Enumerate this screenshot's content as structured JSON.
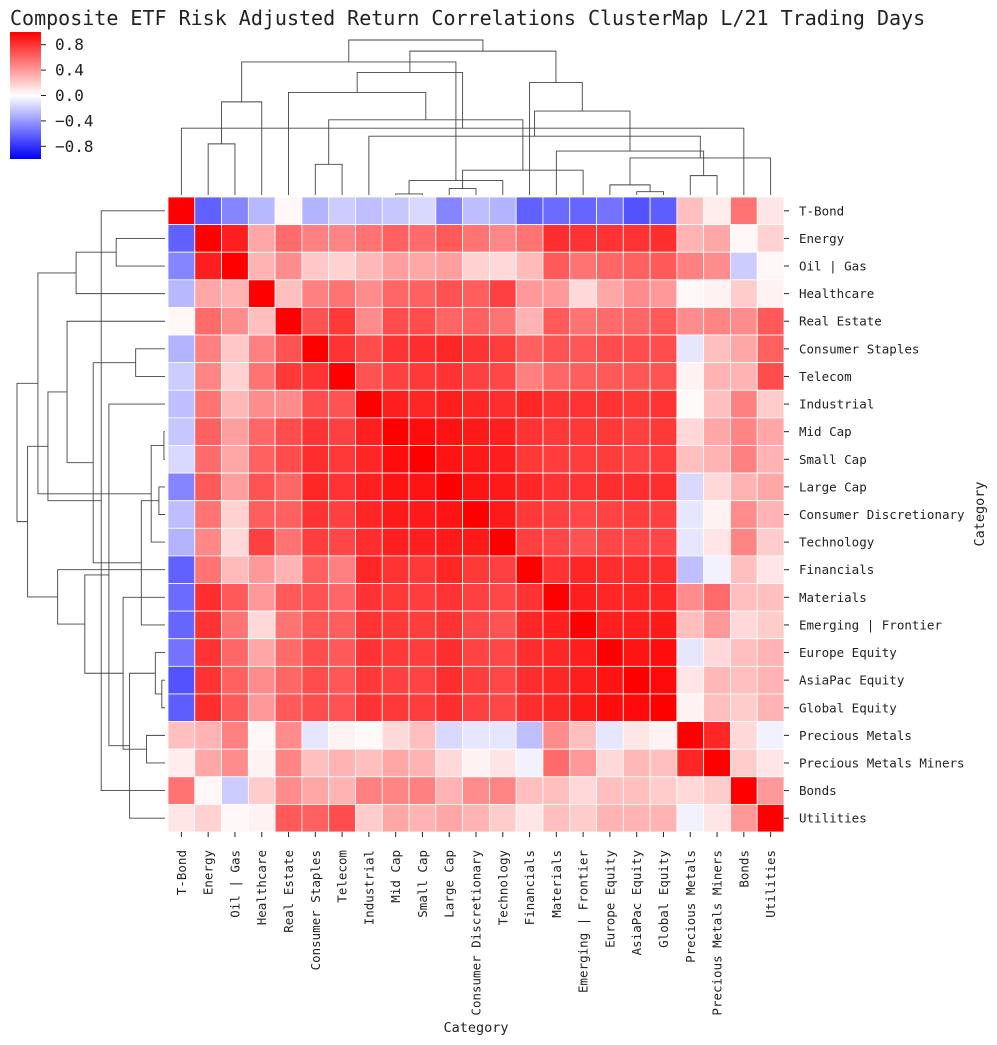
{
  "chart_data": {
    "type": "heatmap",
    "title": "Composite ETF Risk Adjusted Return Correlations ClusterMap L/21 Trading Days",
    "xlabel": "Category",
    "ylabel": "Category",
    "colormap": "bwr",
    "vmin": -1.0,
    "vmax": 1.0,
    "colorbar_ticks": [
      0.8,
      0.4,
      0.0,
      -0.4,
      -0.8
    ],
    "colorbar_tick_labels": [
      "0.8",
      "0.4",
      "0.0",
      "−0.4",
      "−0.8"
    ],
    "colors": {
      "low": "#0000ff",
      "mid": "#ffffff",
      "high": "#ff0000"
    },
    "categories": [
      "T-Bond",
      "Energy",
      "Oil | Gas",
      "Healthcare",
      "Real Estate",
      "Consumer Staples",
      "Telecom",
      "Industrial",
      "Mid Cap",
      "Small Cap",
      "Large Cap",
      "Consumer Discretionary",
      "Technology",
      "Financials",
      "Materials",
      "Emerging | Frontier",
      "Europe Equity",
      "AsiaPac Equity",
      "Global Equity",
      "Precious Metals",
      "Precious Metals Miners",
      "Bonds",
      "Utilities"
    ],
    "values": [
      [
        1.0,
        -0.62,
        -0.48,
        -0.28,
        0.03,
        -0.3,
        -0.2,
        -0.25,
        -0.22,
        -0.15,
        -0.48,
        -0.26,
        -0.3,
        -0.62,
        -0.58,
        -0.6,
        -0.55,
        -0.68,
        -0.63,
        0.25,
        0.07,
        0.55,
        0.1
      ],
      [
        -0.62,
        1.0,
        0.88,
        0.35,
        0.58,
        0.5,
        0.48,
        0.55,
        0.62,
        0.58,
        0.65,
        0.55,
        0.47,
        0.55,
        0.82,
        0.8,
        0.8,
        0.8,
        0.82,
        0.3,
        0.35,
        0.03,
        0.18
      ],
      [
        -0.48,
        0.88,
        1.0,
        0.3,
        0.45,
        0.22,
        0.18,
        0.28,
        0.38,
        0.35,
        0.38,
        0.18,
        0.15,
        0.27,
        0.65,
        0.55,
        0.6,
        0.62,
        0.65,
        0.5,
        0.45,
        -0.2,
        0.03
      ],
      [
        -0.28,
        0.35,
        0.3,
        1.0,
        0.25,
        0.5,
        0.55,
        0.45,
        0.6,
        0.62,
        0.68,
        0.63,
        0.75,
        0.4,
        0.4,
        0.15,
        0.35,
        0.45,
        0.4,
        0.03,
        0.05,
        0.2,
        0.05
      ],
      [
        0.03,
        0.58,
        0.45,
        0.25,
        1.0,
        0.68,
        0.78,
        0.45,
        0.7,
        0.7,
        0.6,
        0.62,
        0.55,
        0.3,
        0.65,
        0.55,
        0.58,
        0.6,
        0.65,
        0.45,
        0.48,
        0.45,
        0.65
      ],
      [
        -0.3,
        0.5,
        0.22,
        0.5,
        0.68,
        1.0,
        0.8,
        0.7,
        0.8,
        0.82,
        0.85,
        0.8,
        0.76,
        0.62,
        0.68,
        0.66,
        0.7,
        0.7,
        0.7,
        -0.1,
        0.25,
        0.35,
        0.62
      ],
      [
        -0.2,
        0.48,
        0.18,
        0.55,
        0.78,
        0.8,
        1.0,
        0.68,
        0.75,
        0.78,
        0.8,
        0.75,
        0.72,
        0.5,
        0.6,
        0.63,
        0.65,
        0.66,
        0.68,
        0.05,
        0.3,
        0.3,
        0.7
      ],
      [
        -0.25,
        0.55,
        0.28,
        0.45,
        0.45,
        0.7,
        0.68,
        1.0,
        0.88,
        0.85,
        0.88,
        0.85,
        0.82,
        0.85,
        0.8,
        0.8,
        0.8,
        0.78,
        0.8,
        0.02,
        0.25,
        0.5,
        0.2
      ],
      [
        -0.22,
        0.62,
        0.38,
        0.6,
        0.7,
        0.8,
        0.75,
        0.88,
        1.0,
        0.95,
        0.93,
        0.9,
        0.88,
        0.8,
        0.78,
        0.78,
        0.78,
        0.75,
        0.78,
        0.15,
        0.35,
        0.48,
        0.35
      ],
      [
        -0.15,
        0.58,
        0.35,
        0.62,
        0.7,
        0.82,
        0.78,
        0.85,
        0.95,
        1.0,
        0.92,
        0.9,
        0.88,
        0.78,
        0.76,
        0.76,
        0.76,
        0.74,
        0.76,
        0.25,
        0.3,
        0.5,
        0.3
      ],
      [
        -0.48,
        0.65,
        0.38,
        0.68,
        0.6,
        0.85,
        0.8,
        0.88,
        0.93,
        0.92,
        1.0,
        0.92,
        0.9,
        0.85,
        0.8,
        0.8,
        0.82,
        0.82,
        0.82,
        -0.15,
        0.15,
        0.3,
        0.35
      ],
      [
        -0.26,
        0.55,
        0.18,
        0.63,
        0.62,
        0.8,
        0.75,
        0.85,
        0.9,
        0.9,
        0.92,
        1.0,
        0.9,
        0.78,
        0.75,
        0.72,
        0.74,
        0.76,
        0.75,
        -0.1,
        0.05,
        0.45,
        0.3
      ],
      [
        -0.3,
        0.47,
        0.15,
        0.75,
        0.55,
        0.76,
        0.72,
        0.82,
        0.88,
        0.88,
        0.9,
        0.9,
        1.0,
        0.75,
        0.72,
        0.68,
        0.72,
        0.72,
        0.72,
        -0.1,
        0.1,
        0.48,
        0.2
      ],
      [
        -0.62,
        0.55,
        0.27,
        0.4,
        0.3,
        0.62,
        0.5,
        0.85,
        0.8,
        0.78,
        0.85,
        0.78,
        0.75,
        1.0,
        0.8,
        0.85,
        0.82,
        0.82,
        0.82,
        -0.25,
        -0.05,
        0.25,
        0.1
      ],
      [
        -0.58,
        0.82,
        0.65,
        0.4,
        0.65,
        0.68,
        0.6,
        0.8,
        0.78,
        0.76,
        0.8,
        0.75,
        0.72,
        0.8,
        1.0,
        0.88,
        0.85,
        0.85,
        0.85,
        0.45,
        0.58,
        0.25,
        0.25
      ],
      [
        -0.6,
        0.8,
        0.55,
        0.15,
        0.55,
        0.66,
        0.63,
        0.8,
        0.78,
        0.76,
        0.8,
        0.72,
        0.68,
        0.85,
        0.88,
        1.0,
        0.88,
        0.88,
        0.9,
        0.25,
        0.4,
        0.15,
        0.2
      ],
      [
        -0.55,
        0.8,
        0.6,
        0.35,
        0.58,
        0.7,
        0.65,
        0.8,
        0.78,
        0.76,
        0.82,
        0.74,
        0.72,
        0.82,
        0.85,
        0.88,
        1.0,
        0.92,
        0.95,
        -0.1,
        0.15,
        0.25,
        0.3
      ],
      [
        -0.68,
        0.8,
        0.62,
        0.45,
        0.6,
        0.7,
        0.66,
        0.78,
        0.75,
        0.74,
        0.82,
        0.76,
        0.72,
        0.82,
        0.85,
        0.88,
        0.92,
        1.0,
        0.96,
        0.1,
        0.28,
        0.25,
        0.3
      ],
      [
        -0.63,
        0.82,
        0.65,
        0.4,
        0.65,
        0.7,
        0.68,
        0.8,
        0.78,
        0.76,
        0.82,
        0.75,
        0.72,
        0.82,
        0.85,
        0.9,
        0.95,
        0.96,
        1.0,
        0.05,
        0.25,
        0.2,
        0.3
      ],
      [
        0.25,
        0.3,
        0.5,
        0.03,
        0.45,
        -0.1,
        0.05,
        0.02,
        0.15,
        0.25,
        -0.15,
        -0.1,
        -0.1,
        -0.25,
        0.45,
        0.25,
        -0.1,
        0.1,
        0.05,
        1.0,
        0.85,
        0.15,
        -0.05
      ],
      [
        0.07,
        0.35,
        0.45,
        0.05,
        0.48,
        0.25,
        0.3,
        0.25,
        0.35,
        0.3,
        0.15,
        0.05,
        0.1,
        -0.05,
        0.58,
        0.4,
        0.15,
        0.28,
        0.25,
        0.85,
        1.0,
        0.2,
        0.1
      ],
      [
        0.55,
        0.03,
        -0.2,
        0.2,
        0.45,
        0.35,
        0.3,
        0.5,
        0.48,
        0.5,
        0.3,
        0.45,
        0.48,
        0.25,
        0.25,
        0.15,
        0.25,
        0.25,
        0.2,
        0.15,
        0.2,
        1.0,
        0.4
      ],
      [
        0.1,
        0.18,
        0.03,
        0.05,
        0.65,
        0.62,
        0.7,
        0.2,
        0.35,
        0.3,
        0.35,
        0.3,
        0.2,
        0.1,
        0.25,
        0.2,
        0.3,
        0.3,
        0.3,
        -0.05,
        0.1,
        0.4,
        1.0
      ]
    ],
    "dendrogram_merges": [
      [
        8,
        9
      ],
      [
        17,
        18
      ],
      [
        10,
        11
      ],
      [
        16,
        24
      ],
      [
        23,
        12
      ],
      [
        19,
        20
      ],
      [
        15,
        25
      ],
      [
        5,
        6
      ],
      [
        22,
        26
      ],
      [
        14,
        28
      ],
      [
        1,
        2
      ],
      [
        7,
        31
      ],
      [
        21,
        0
      ],
      [
        30,
        29
      ],
      [
        34,
        32
      ],
      [
        33,
        3
      ],
      [
        4,
        36
      ],
      [
        13,
        37
      ],
      [
        35,
        39
      ],
      [
        38,
        27
      ],
      [
        40,
        41
      ],
      [
        42,
        43
      ]
    ]
  }
}
